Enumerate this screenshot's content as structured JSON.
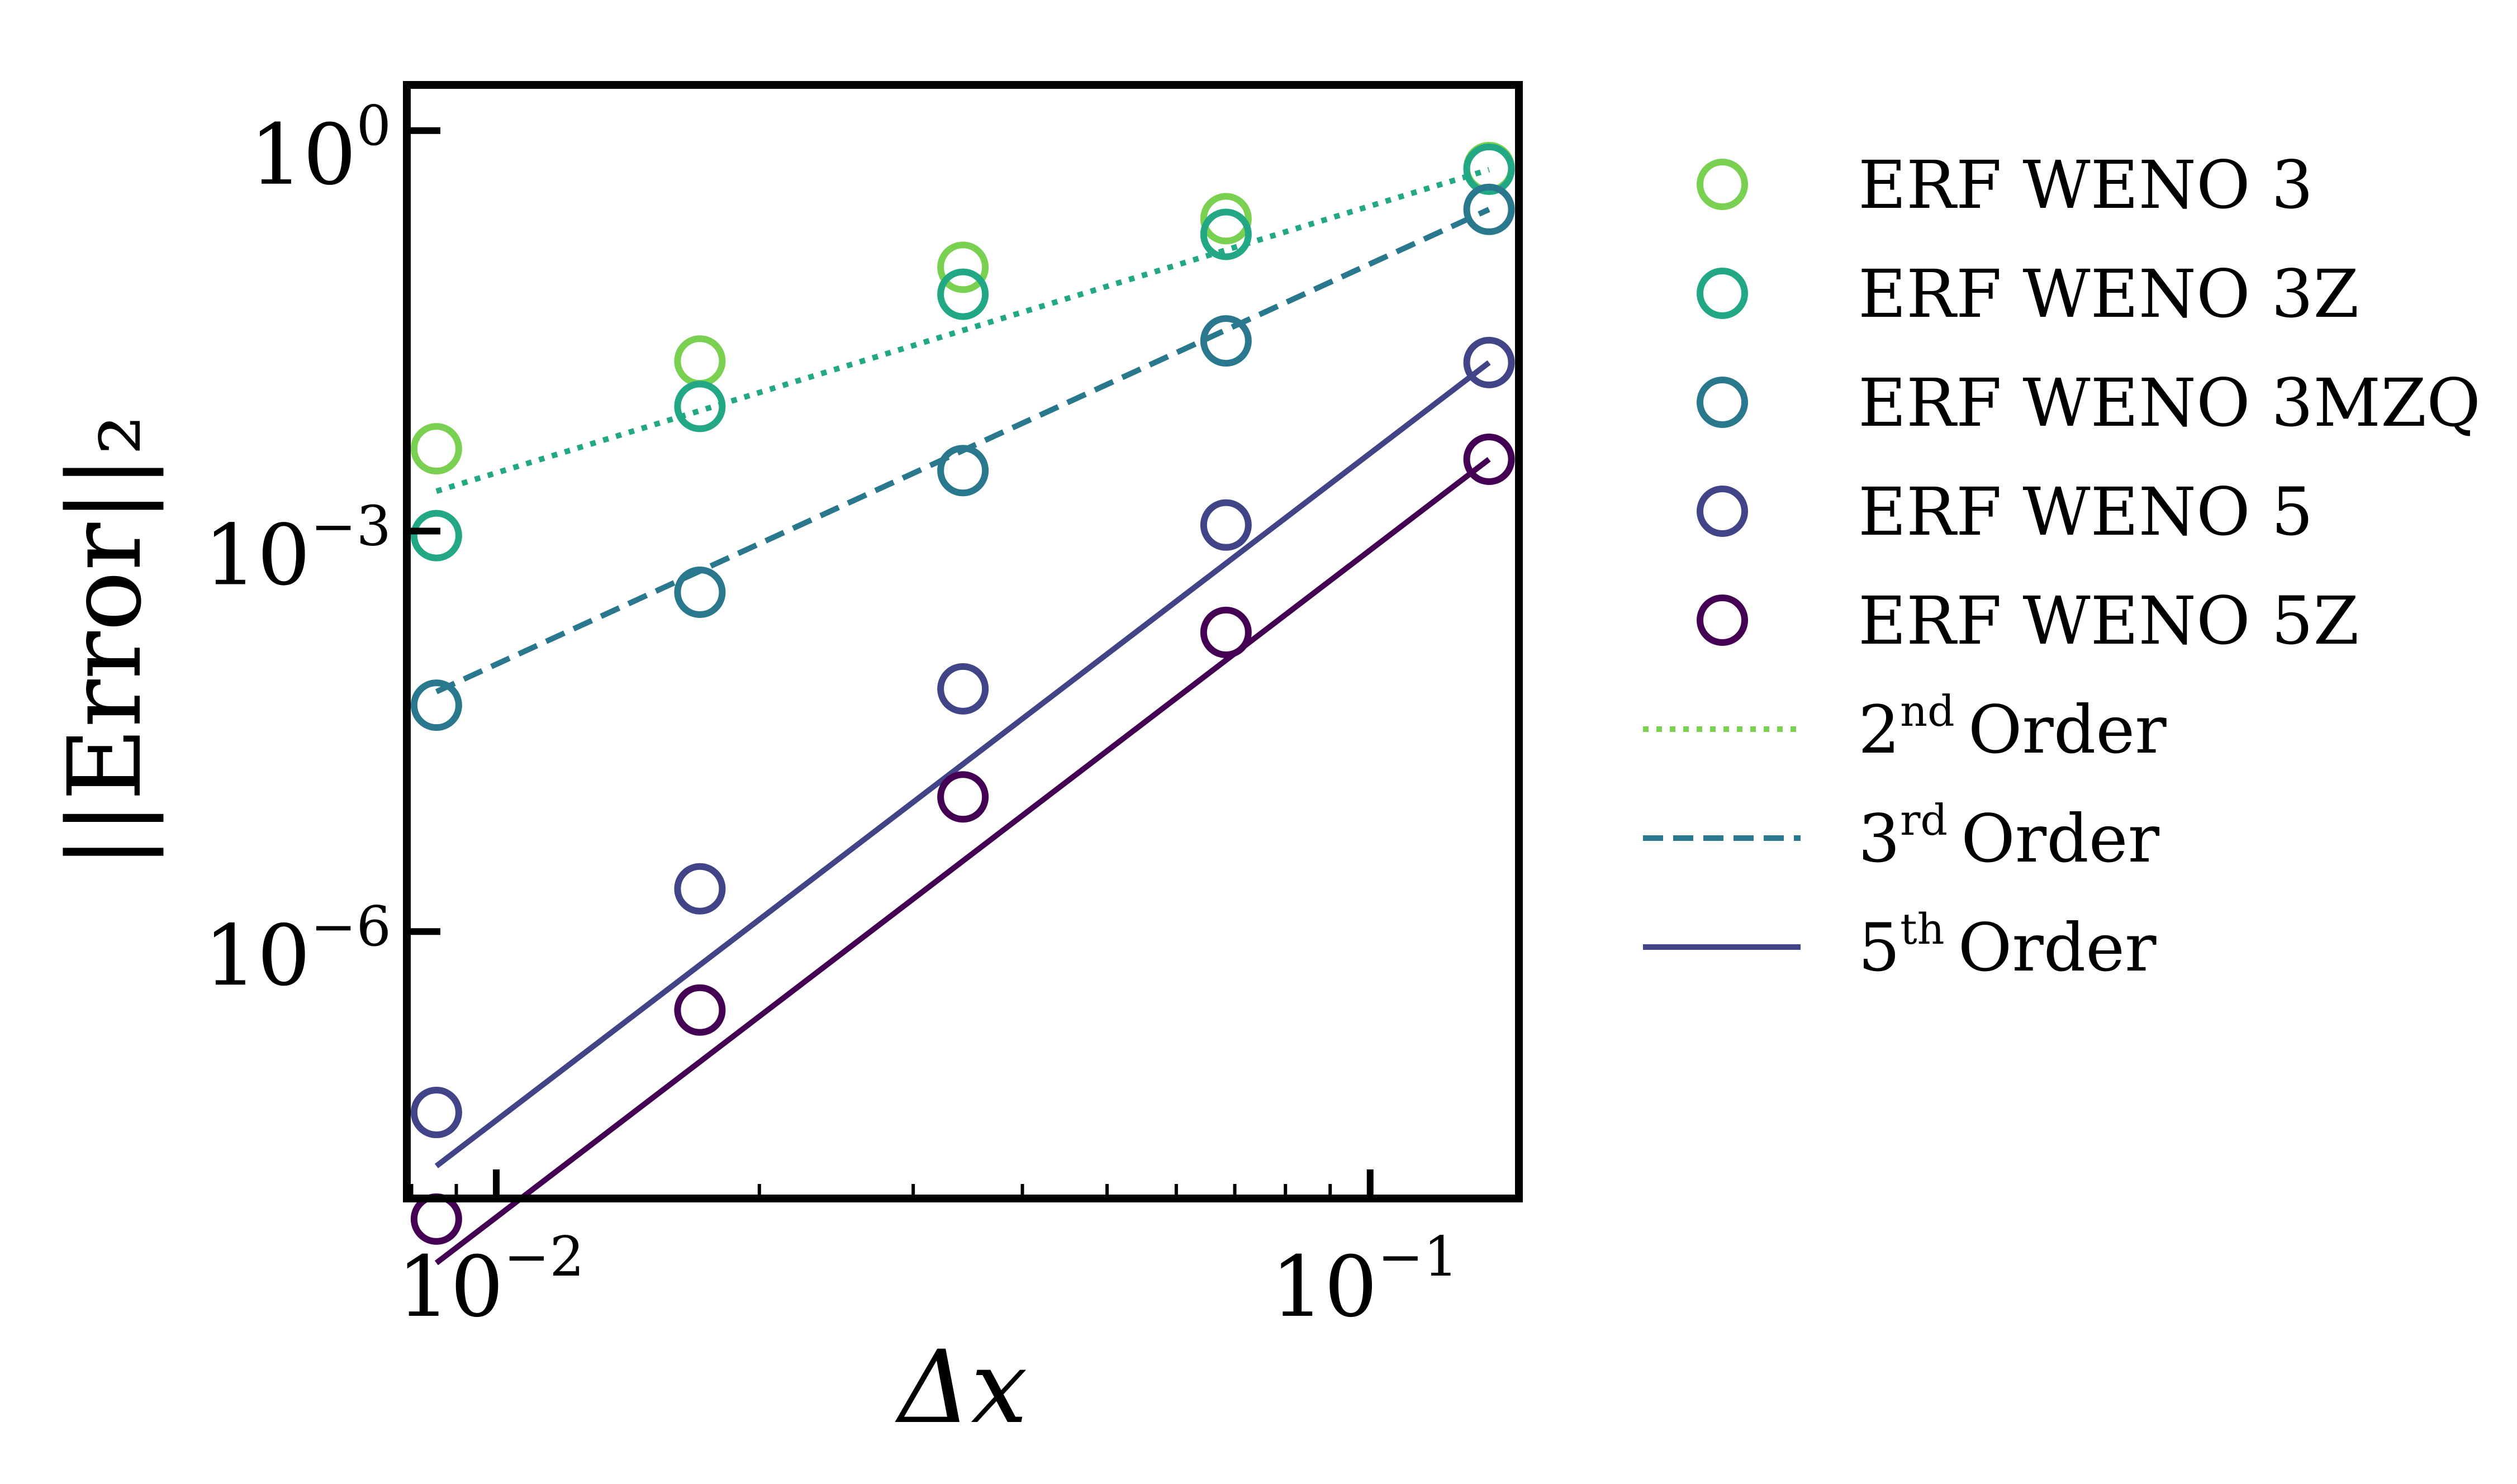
{
  "chart_data": {
    "type": "scatter",
    "x_scale": "log",
    "y_scale": "log",
    "xlabel": "Δx",
    "ylabel": "||Error||₂",
    "xlim": [
      0.0079,
      0.148
    ],
    "ylim": [
      1e-08,
      2.2
    ],
    "grid": false,
    "legend_position": "outside-right",
    "x_ticks": [
      {
        "value": 0.01,
        "base": "10",
        "exp": "−2"
      },
      {
        "value": 0.1,
        "base": "10",
        "exp": "−1"
      }
    ],
    "y_ticks": [
      {
        "value": 1.0,
        "base": "10",
        "exp": "0"
      },
      {
        "value": 0.001,
        "base": "10",
        "exp": "−3"
      },
      {
        "value": 1e-06,
        "base": "10",
        "exp": "−6"
      }
    ],
    "x": [
      0.00854,
      0.0171,
      0.0342,
      0.0684,
      0.1368
    ],
    "series": [
      {
        "name": "ERF WENO 3",
        "color": "#7ad151",
        "marker": "circle-open",
        "values": [
          0.00414,
          0.0188,
          0.0947,
          0.219,
          0.529
        ]
      },
      {
        "name": "ERF WENO 3Z",
        "color": "#22a884",
        "marker": "circle-open",
        "values": [
          0.000925,
          0.00859,
          0.0595,
          0.167,
          0.514
        ]
      },
      {
        "name": "ERF WENO 3MZQ",
        "color": "#2a788e",
        "marker": "circle-open",
        "values": [
          4.96e-05,
          0.000348,
          0.00284,
          0.0266,
          0.257
        ]
      },
      {
        "name": "ERF WENO 5",
        "color": "#414487",
        "marker": "circle-open",
        "values": [
          4.41e-08,
          2.09e-06,
          6.58e-05,
          0.00111,
          0.0183
        ]
      },
      {
        "name": "ERF WENO 5Z",
        "color": "#440154",
        "marker": "circle-open",
        "values": [
          7.01e-09,
          2.58e-07,
          1.02e-05,
          0.000174,
          0.00345
        ]
      }
    ],
    "reference_lines": [
      {
        "name": "2",
        "sup": "nd",
        "suffix": "Order",
        "color": "#22a884",
        "legend_color": "#7ad151",
        "style": "dotted",
        "x": [
          0.00854,
          0.1368
        ],
        "y": [
          0.00199,
          0.51
        ]
      },
      {
        "name": "3",
        "sup": "rd",
        "suffix": "Order",
        "color": "#2a788e",
        "legend_color": "#2a788e",
        "style": "dashed",
        "x": [
          0.00854,
          0.1368
        ],
        "y": [
          6.26e-05,
          0.257
        ]
      },
      {
        "name": "5",
        "sup": "th",
        "suffix": "Order",
        "color": "#414487",
        "legend_color": "#414487",
        "style": "solid",
        "x": [
          0.00854,
          0.1368
        ],
        "y": [
          1.75e-08,
          0.0183
        ]
      },
      {
        "name": "",
        "sup": "",
        "suffix": "",
        "color": "#440154",
        "legend_color": "",
        "style": "solid",
        "x": [
          0.00854,
          0.1368
        ],
        "y": [
          3.29e-09,
          0.00345
        ]
      }
    ]
  }
}
